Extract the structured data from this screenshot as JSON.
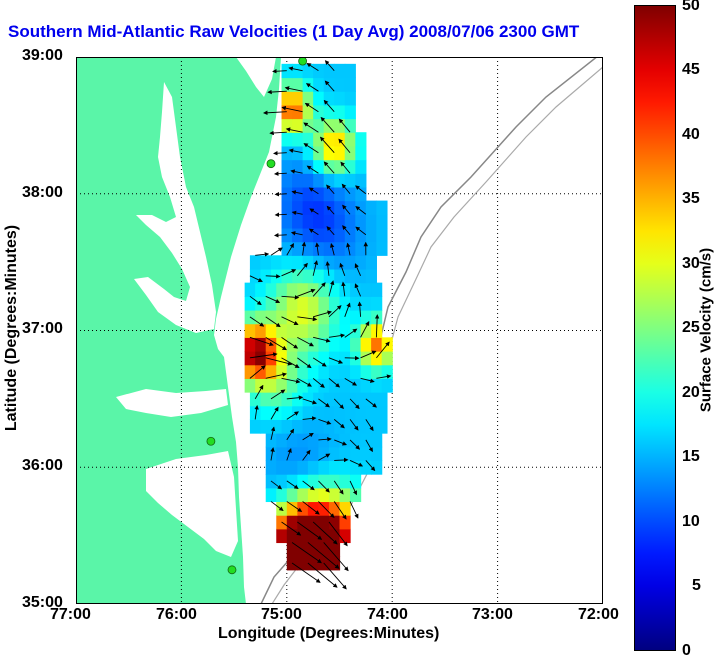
{
  "title": "Southern Mid-Atlantic Raw Velocities (1 Day Avg) 2008/07/06 2300 GMT",
  "map": {
    "lon_range": [
      -77.0,
      -72.0
    ],
    "lat_range": [
      35.0,
      39.0
    ],
    "x_ticks": [
      "77:00",
      "76:00",
      "75:00",
      "74:00",
      "73:00",
      "72:00"
    ],
    "y_ticks": [
      "39:00",
      "38:00",
      "37:00",
      "36:00",
      "35:00"
    ],
    "xlabel": "Longitude (Degrees:Minutes)",
    "ylabel": "Latitude (Degrees:Minutes)",
    "grid": "dotted",
    "land_color": "#5af5a8",
    "arrow_color": "#000000",
    "station_color": "#22dd22",
    "stations": [
      {
        "lon": -74.85,
        "lat": 38.97
      },
      {
        "lon": -75.15,
        "lat": 38.22
      },
      {
        "lon": -75.72,
        "lat": 36.19
      },
      {
        "lon": -75.52,
        "lat": 35.25
      }
    ]
  },
  "colorbar": {
    "label": "Surface Velocity (cm/s)",
    "ticks": [
      "50",
      "45",
      "40",
      "35",
      "30",
      "25",
      "20",
      "15",
      "10",
      "5",
      "0"
    ],
    "range": [
      0,
      50
    ],
    "colormap": "jet"
  }
}
